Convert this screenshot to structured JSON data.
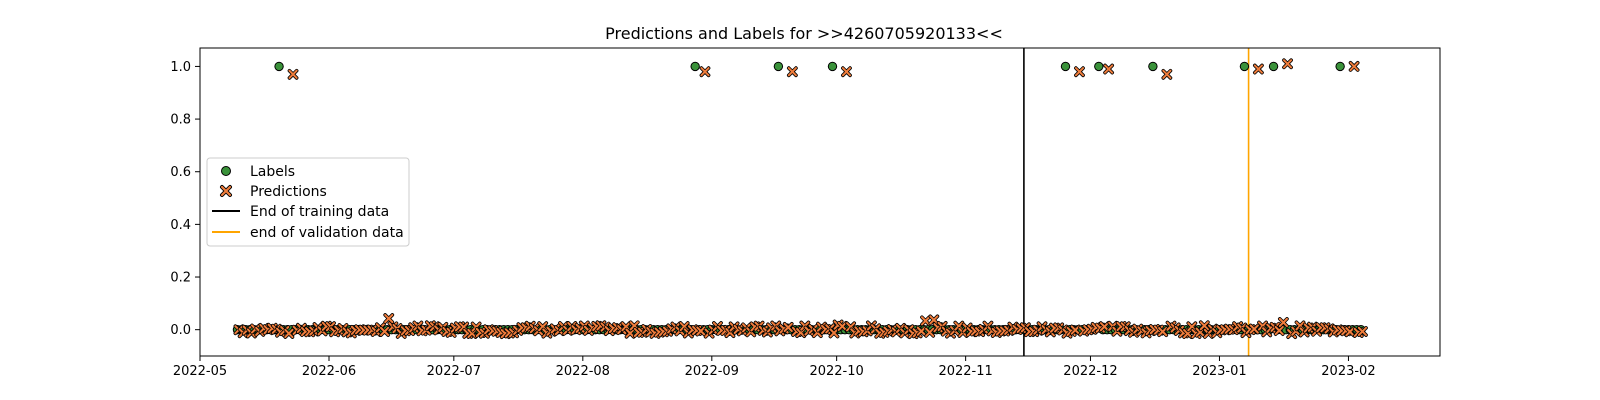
{
  "chart_data": {
    "type": "scatter",
    "title": "Predictions and Labels for >>4260705920133<<",
    "xlabel": "",
    "ylabel": "",
    "x_axis_type": "date",
    "xlim": [
      "2022-05-01",
      "2023-02-23"
    ],
    "ylim": [
      -0.1,
      1.07
    ],
    "x_ticks": [
      "2022-05-01",
      "2022-06-01",
      "2022-07-01",
      "2022-08-01",
      "2022-09-01",
      "2022-10-01",
      "2022-11-01",
      "2022-12-01",
      "2023-01-01",
      "2023-02-01"
    ],
    "x_tick_labels": [
      "2022-05",
      "2022-06",
      "2022-07",
      "2022-08",
      "2022-09",
      "2022-10",
      "2022-11",
      "2022-12",
      "2023-01",
      "2023-02"
    ],
    "y_ticks": [
      0.0,
      0.2,
      0.4,
      0.6,
      0.8,
      1.0
    ],
    "y_tick_labels": [
      "0.0",
      "0.2",
      "0.4",
      "0.6",
      "0.8",
      "1.0"
    ],
    "grid": false,
    "legend_position": "center-left",
    "series": [
      {
        "name": "Labels",
        "marker": "circle",
        "color": "#3a923a",
        "date_range": [
          "2022-05-10",
          "2023-02-04"
        ],
        "ones": [
          "2022-05-20",
          "2022-08-28",
          "2022-09-17",
          "2022-09-30",
          "2022-11-25",
          "2022-12-03",
          "2022-12-16",
          "2023-01-07",
          "2023-01-14",
          "2023-01-30"
        ],
        "baseline": 0.0
      },
      {
        "name": "Predictions",
        "marker": "x",
        "color": "#f07d3c",
        "date_range": [
          "2022-05-10",
          "2023-02-04"
        ],
        "highs": [
          {
            "x": "2022-05-23",
            "y": 0.97
          },
          {
            "x": "2022-08-30",
            "y": 0.98
          },
          {
            "x": "2022-09-20",
            "y": 0.98
          },
          {
            "x": "2022-10-03",
            "y": 0.98
          },
          {
            "x": "2022-11-28",
            "y": 0.98
          },
          {
            "x": "2022-12-05",
            "y": 0.99
          },
          {
            "x": "2022-12-19",
            "y": 0.97
          },
          {
            "x": "2023-01-10",
            "y": 0.99
          },
          {
            "x": "2023-01-17",
            "y": 1.01
          },
          {
            "x": "2023-02-02",
            "y": 1.0
          }
        ],
        "baseline": 0.0,
        "noise": 0.015
      }
    ],
    "vlines": [
      {
        "name": "End of training data",
        "x": "2022-11-15",
        "color": "#000000"
      },
      {
        "name": "end of validation data",
        "x": "2023-01-08",
        "color": "#ffa500"
      }
    ]
  }
}
